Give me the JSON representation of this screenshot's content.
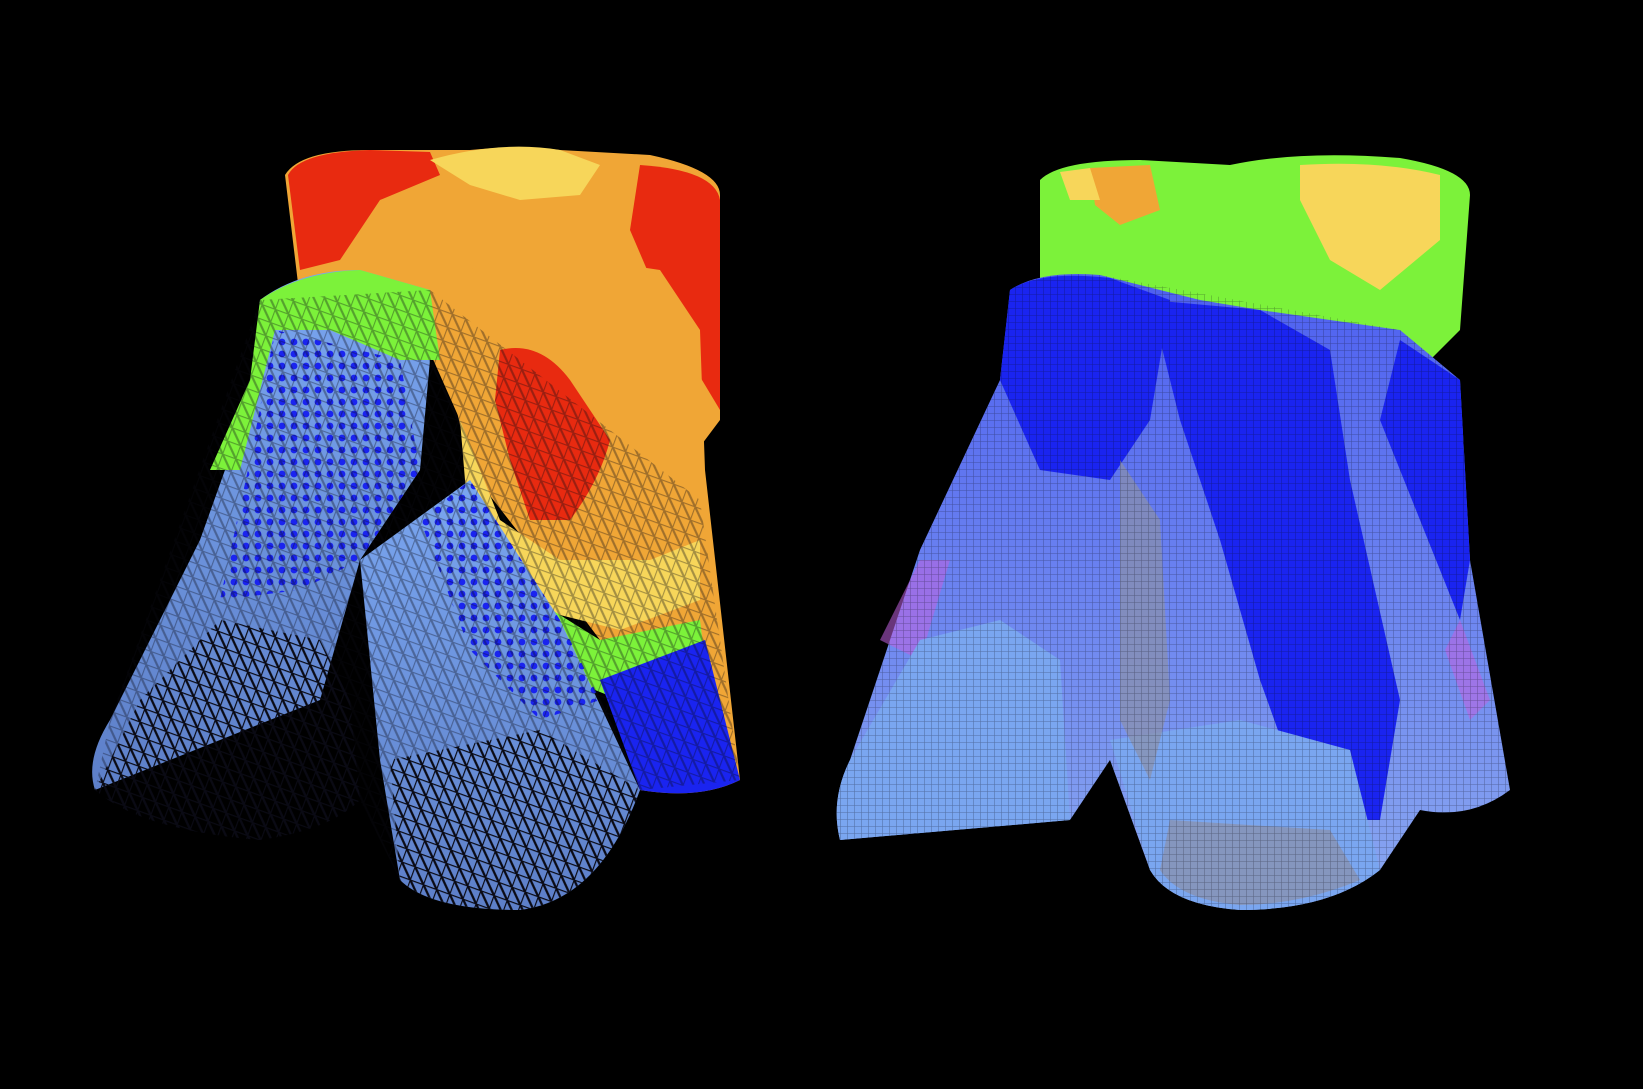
{
  "background_color": "#000000",
  "panels": [
    {
      "id": "left-garment",
      "description_role": "coarse-mesh-pressure-map",
      "colors": {
        "red": "#e82a10",
        "orange": "#f0a636",
        "yellow": "#f7d65a",
        "green": "#7cf23a",
        "blue": "#1a24f0",
        "light_blue": "#7aa6f0",
        "mesh_dark": "#0a0a14"
      }
    },
    {
      "id": "right-garment",
      "description_role": "fine-mesh-pressure-map",
      "colors": {
        "orange": "#f0a636",
        "yellow": "#f7d65a",
        "green": "#7cf23a",
        "blue": "#1a24f0",
        "light_blue": "#7aa6f0",
        "violet": "#c060e0",
        "mesh_dark": "#0a0a14"
      }
    }
  ]
}
